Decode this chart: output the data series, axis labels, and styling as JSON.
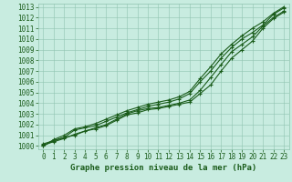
{
  "xlabel": "Graphe pression niveau de la mer (hPa)",
  "xlim": [
    -0.5,
    23.5
  ],
  "ylim": [
    999.7,
    1013.3
  ],
  "yticks": [
    1000,
    1001,
    1002,
    1003,
    1004,
    1005,
    1006,
    1007,
    1008,
    1009,
    1010,
    1011,
    1012,
    1013
  ],
  "xticks": [
    0,
    1,
    2,
    3,
    4,
    5,
    6,
    7,
    8,
    9,
    10,
    11,
    12,
    13,
    14,
    15,
    16,
    17,
    18,
    19,
    20,
    21,
    22,
    23
  ],
  "background_color": "#c8ece0",
  "grid_color": "#90c4b0",
  "line_color": "#1a5c1a",
  "curve1": [
    1000.2,
    1000.5,
    1000.8,
    1001.0,
    1001.4,
    1001.7,
    1002.0,
    1002.5,
    1003.0,
    1003.3,
    1003.5,
    1003.6,
    1003.8,
    1004.0,
    1004.3,
    1005.2,
    1006.4,
    1007.6,
    1008.8,
    1009.5,
    1010.2,
    1011.2,
    1012.0,
    1012.6
  ],
  "curve2": [
    1000.1,
    1000.4,
    1000.7,
    1001.1,
    1001.4,
    1001.6,
    1001.9,
    1002.4,
    1002.9,
    1003.1,
    1003.4,
    1003.5,
    1003.7,
    1003.9,
    1004.1,
    1004.9,
    1005.7,
    1007.0,
    1008.2,
    1009.0,
    1009.8,
    1011.0,
    1011.9,
    1012.5
  ],
  "curve3": [
    1000.0,
    1000.5,
    1000.8,
    1001.5,
    1001.7,
    1001.9,
    1002.3,
    1002.7,
    1003.1,
    1003.4,
    1003.7,
    1003.9,
    1004.1,
    1004.4,
    1004.9,
    1006.0,
    1007.0,
    1008.2,
    1009.2,
    1010.0,
    1010.6,
    1011.3,
    1012.3,
    1012.9
  ],
  "curve4": [
    1000.0,
    1000.6,
    1001.0,
    1001.6,
    1001.8,
    1002.1,
    1002.5,
    1002.9,
    1003.3,
    1003.6,
    1003.9,
    1004.1,
    1004.3,
    1004.6,
    1005.1,
    1006.3,
    1007.4,
    1008.6,
    1009.5,
    1010.3,
    1011.0,
    1011.6,
    1012.4,
    1013.0
  ],
  "marker": "+",
  "linewidth": 0.8,
  "markersize": 3,
  "fontsize_label": 6.5,
  "fontsize_tick": 5.5
}
